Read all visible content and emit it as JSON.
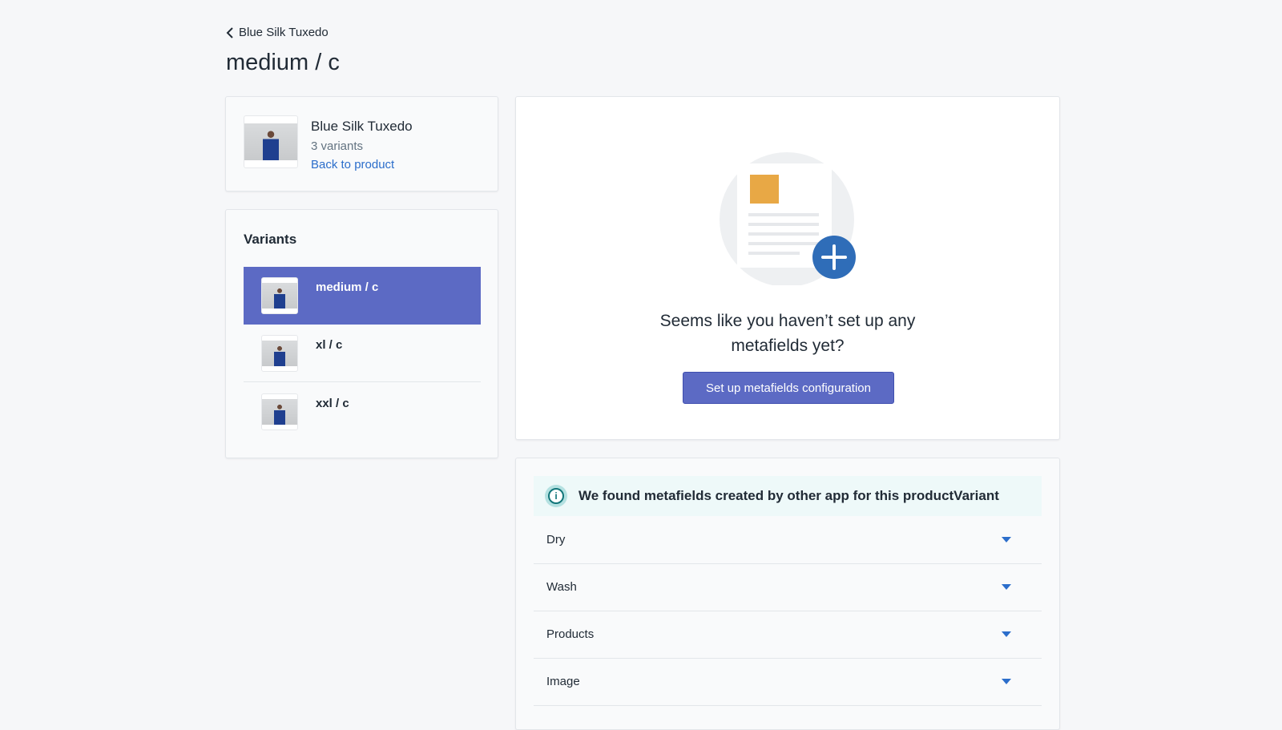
{
  "breadcrumb": {
    "label": "Blue Silk Tuxedo"
  },
  "page_title": "medium / c",
  "product": {
    "name": "Blue Silk Tuxedo",
    "variant_count": "3 variants",
    "back_link": "Back to product"
  },
  "variants": {
    "heading": "Variants",
    "items": [
      {
        "label": "medium / c",
        "selected": true
      },
      {
        "label": "xl / c"
      },
      {
        "label": "xxl / c"
      }
    ]
  },
  "empty_state": {
    "line1": "Seems like you haven’t set up any",
    "line2": "metafields yet?",
    "button": "Set up metafields configuration"
  },
  "other_app": {
    "banner": "We found metafields created by other app for this productVariant",
    "fields": [
      "Dry",
      "Wash",
      "Products",
      "Image"
    ]
  },
  "colors": {
    "accent": "#5c6ac4",
    "link": "#2c6ecb",
    "info": "#12767a"
  }
}
